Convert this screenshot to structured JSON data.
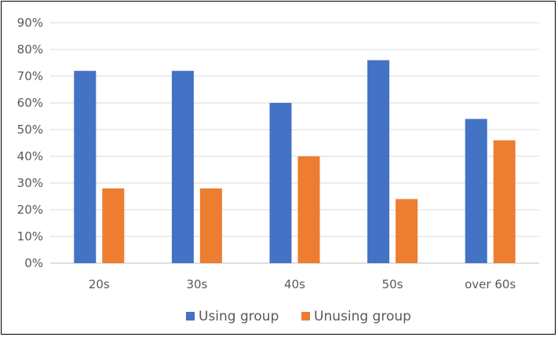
{
  "chart_data": {
    "type": "bar",
    "categories": [
      "20s",
      "30s",
      "40s",
      "50s",
      "over 60s"
    ],
    "series": [
      {
        "name": "Using group",
        "values": [
          72,
          72,
          60,
          76,
          54
        ],
        "color": "#4472C4"
      },
      {
        "name": "Unusing group",
        "values": [
          28,
          28,
          40,
          24,
          46
        ],
        "color": "#ED7D31"
      }
    ],
    "yticks": [
      "0%",
      "10%",
      "20%",
      "30%",
      "40%",
      "50%",
      "60%",
      "70%",
      "80%",
      "90%"
    ],
    "ylim": [
      0,
      90
    ],
    "grid": true,
    "legend_position": "bottom",
    "title": "",
    "xlabel": "",
    "ylabel": ""
  }
}
